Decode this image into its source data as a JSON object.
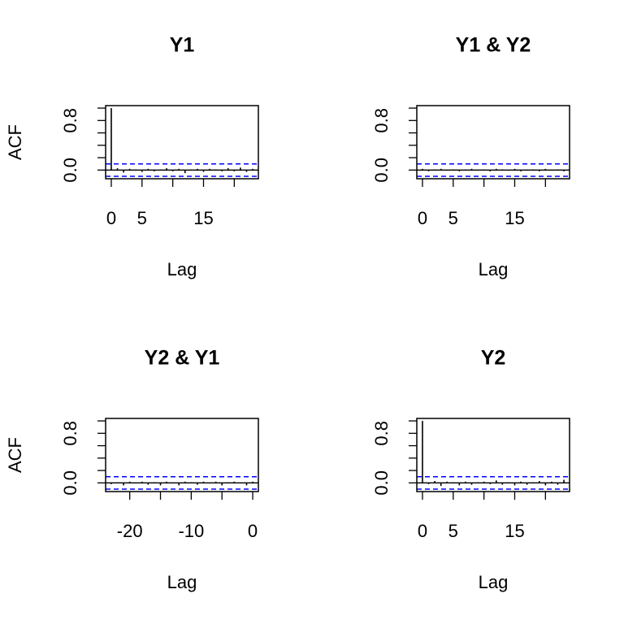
{
  "chart_data": [
    {
      "type": "acf",
      "title": "Y1",
      "xlabel": "Lag",
      "ylabel": "ACF",
      "color": "#000000",
      "ci_color": "#0000ff",
      "ci": 0.1,
      "x": [
        0,
        1,
        2,
        3,
        4,
        5,
        6,
        7,
        8,
        9,
        10,
        11,
        12,
        13,
        14,
        15,
        16,
        17,
        18,
        19,
        20,
        21,
        22,
        23
      ],
      "values": [
        1,
        0.03,
        -0.04,
        0.02,
        0.01,
        -0.03,
        0.02,
        -0.02,
        0.01,
        0.03,
        -0.02,
        0.02,
        -0.05,
        0.01,
        0.02,
        -0.03,
        0.02,
        0.01,
        -0.02,
        0.03,
        -0.02,
        0.04,
        -0.03,
        0.02
      ],
      "xlim": [
        -0.92,
        23.92
      ],
      "ylim": [
        -0.14,
        1.04
      ],
      "xticks": [
        0,
        5,
        {
          "value": 10,
          "label": null
        },
        15,
        {
          "value": 20,
          "label": null
        }
      ],
      "yticks": [
        {
          "value": 0,
          "label": "0.0"
        },
        {
          "value": 0.2,
          "label": null
        },
        {
          "value": 0.4,
          "label": null
        },
        {
          "value": 0.6,
          "label": null
        },
        {
          "value": 0.8,
          "label": "0.8"
        },
        {
          "value": 1,
          "label": null
        }
      ]
    },
    {
      "type": "acf",
      "title": "Y1 & Y2",
      "xlabel": "Lag",
      "color": "#000000",
      "ci_color": "#0000ff",
      "ci": 0.1,
      "x": [
        0,
        1,
        2,
        3,
        4,
        5,
        6,
        7,
        8,
        9,
        10,
        11,
        12,
        13,
        14,
        15,
        16,
        17,
        18,
        19,
        20,
        21,
        22,
        23
      ],
      "values": [
        0.02,
        -0.02,
        0.01,
        0.02,
        -0.01,
        0.01,
        -0.02,
        0.01,
        0.02,
        -0.01,
        0.01,
        -0.02,
        0.02,
        0.01,
        -0.01,
        0.02,
        -0.02,
        0.01,
        0.01,
        -0.02,
        0.02,
        -0.01,
        0.01,
        -0.02
      ],
      "xlim": [
        -0.92,
        23.92
      ],
      "ylim": [
        -0.14,
        1.04
      ],
      "xticks": [
        0,
        5,
        {
          "value": 10,
          "label": null
        },
        15,
        {
          "value": 20,
          "label": null
        }
      ],
      "yticks": [
        {
          "value": 0,
          "label": "0.0"
        },
        {
          "value": 0.2,
          "label": null
        },
        {
          "value": 0.4,
          "label": null
        },
        {
          "value": 0.6,
          "label": null
        },
        {
          "value": 0.8,
          "label": "0.8"
        },
        {
          "value": 1,
          "label": null
        }
      ]
    },
    {
      "type": "acf",
      "title": "Y2 & Y1",
      "xlabel": "Lag",
      "ylabel": "ACF",
      "color": "#000000",
      "ci_color": "#0000ff",
      "ci": 0.1,
      "x": [
        -23,
        -22,
        -21,
        -20,
        -19,
        -18,
        -17,
        -16,
        -15,
        -14,
        -13,
        -12,
        -11,
        -10,
        -9,
        -8,
        -7,
        -6,
        -5,
        -4,
        -3,
        -2,
        -1,
        0
      ],
      "values": [
        -0.02,
        0.01,
        -0.04,
        0.02,
        -0.01,
        0.02,
        -0.03,
        0.01,
        -0.04,
        0.02,
        -0.01,
        -0.04,
        0.02,
        0.01,
        -0.03,
        0.02,
        -0.01,
        0.02,
        -0.04,
        0.01,
        0.02,
        -0.01,
        -0.04,
        0.02
      ],
      "xlim": [
        -23.92,
        0.92
      ],
      "ylim": [
        -0.14,
        1.04
      ],
      "xticks": [
        -20,
        {
          "value": -15,
          "label": null
        },
        -10,
        {
          "value": -5,
          "label": null
        },
        0
      ],
      "yticks": [
        {
          "value": 0,
          "label": "0.0"
        },
        {
          "value": 0.2,
          "label": null
        },
        {
          "value": 0.4,
          "label": null
        },
        {
          "value": 0.6,
          "label": null
        },
        {
          "value": 0.8,
          "label": "0.8"
        },
        {
          "value": 1,
          "label": null
        }
      ]
    },
    {
      "type": "acf",
      "title": "Y2",
      "xlabel": "Lag",
      "color": "#000000",
      "ci_color": "#0000ff",
      "ci": 0.1,
      "x": [
        0,
        1,
        2,
        3,
        4,
        5,
        6,
        7,
        8,
        9,
        10,
        11,
        12,
        13,
        14,
        15,
        16,
        17,
        18,
        19,
        20,
        21,
        22,
        23
      ],
      "values": [
        1,
        -0.02,
        0.03,
        -0.05,
        0.02,
        0.01,
        -0.04,
        0.02,
        -0.03,
        0.01,
        0.02,
        -0.02,
        0.04,
        -0.03,
        0.01,
        -0.04,
        0.02,
        -0.03,
        0.01,
        0.03,
        -0.04,
        0.02,
        -0.03,
        0.05
      ],
      "xlim": [
        -0.92,
        23.92
      ],
      "ylim": [
        -0.14,
        1.04
      ],
      "xticks": [
        0,
        5,
        {
          "value": 10,
          "label": null
        },
        15,
        {
          "value": 20,
          "label": null
        }
      ],
      "yticks": [
        {
          "value": 0,
          "label": "0.0"
        },
        {
          "value": 0.2,
          "label": null
        },
        {
          "value": 0.4,
          "label": null
        },
        {
          "value": 0.6,
          "label": null
        },
        {
          "value": 0.8,
          "label": "0.8"
        },
        {
          "value": 1,
          "label": null
        }
      ]
    }
  ]
}
